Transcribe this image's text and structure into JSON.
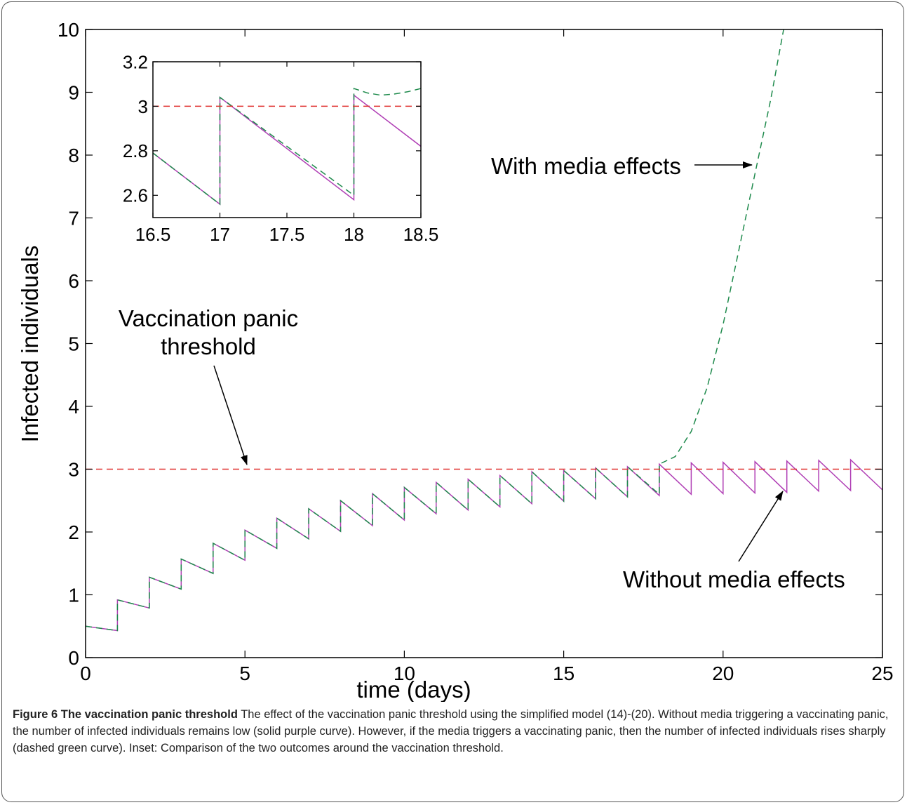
{
  "chart_data": [
    {
      "type": "line",
      "title": "",
      "xlabel": "time (days)",
      "ylabel": "Infected individuals",
      "xlim": [
        0,
        25
      ],
      "ylim": [
        0,
        10
      ],
      "xticks": [
        "0",
        "5",
        "10",
        "15",
        "20",
        "25"
      ],
      "yticks": [
        "0",
        "1",
        "2",
        "3",
        "4",
        "5",
        "6",
        "7",
        "8",
        "9",
        "10"
      ],
      "grid": false,
      "series": [
        {
          "name": "Without media effects",
          "style": "solid",
          "color": "#b03fb5",
          "x": [
            0,
            1,
            1,
            2,
            2,
            3,
            3,
            4,
            4,
            5,
            5,
            6,
            6,
            7,
            7,
            8,
            8,
            9,
            9,
            10,
            10,
            11,
            11,
            12,
            12,
            13,
            13,
            14,
            14,
            15,
            15,
            16,
            16,
            17,
            17,
            18,
            18,
            19,
            19,
            20,
            20,
            21,
            21,
            22,
            22,
            23,
            23,
            24,
            24,
            25
          ],
          "y": [
            0.5,
            0.43,
            0.92,
            0.79,
            1.28,
            1.09,
            1.57,
            1.34,
            1.82,
            1.55,
            2.03,
            1.74,
            2.22,
            1.89,
            2.37,
            2.01,
            2.5,
            2.1,
            2.61,
            2.19,
            2.71,
            2.29,
            2.79,
            2.35,
            2.84,
            2.4,
            2.9,
            2.45,
            2.96,
            2.49,
            2.98,
            2.53,
            3.02,
            2.56,
            3.04,
            2.58,
            3.08,
            2.6,
            3.1,
            2.61,
            3.11,
            2.62,
            3.12,
            2.63,
            3.13,
            2.65,
            3.14,
            2.66,
            3.15,
            2.67
          ]
        },
        {
          "name": "With media effects",
          "style": "dashed",
          "color": "#1e8a4c",
          "x": [
            0,
            1,
            1,
            2,
            2,
            3,
            3,
            4,
            4,
            5,
            5,
            6,
            6,
            7,
            7,
            8,
            8,
            9,
            9,
            10,
            10,
            11,
            11,
            12,
            12,
            13,
            13,
            14,
            14,
            15,
            15,
            16,
            16,
            17,
            17,
            18,
            18,
            18.5,
            19,
            19.5,
            20,
            20.5,
            21,
            21.5,
            21.9
          ],
          "y": [
            0.5,
            0.43,
            0.92,
            0.79,
            1.28,
            1.09,
            1.57,
            1.34,
            1.82,
            1.55,
            2.03,
            1.74,
            2.22,
            1.89,
            2.37,
            2.01,
            2.5,
            2.1,
            2.61,
            2.19,
            2.71,
            2.29,
            2.79,
            2.35,
            2.84,
            2.4,
            2.9,
            2.45,
            2.96,
            2.49,
            2.98,
            2.53,
            3.02,
            2.56,
            3.04,
            2.6,
            3.08,
            3.2,
            3.6,
            4.3,
            5.3,
            6.5,
            7.7,
            8.9,
            10
          ]
        },
        {
          "name": "Vaccination panic threshold",
          "style": "dashed",
          "color": "#e0302f",
          "x": [
            0,
            25
          ],
          "y": [
            3,
            3
          ]
        }
      ],
      "annotations": {
        "threshold_line1": "Vaccination panic",
        "threshold_line2": "threshold",
        "with_media": "With media effects",
        "without_media": "Without media effects"
      }
    },
    {
      "type": "line",
      "title": "",
      "xlabel": "",
      "ylabel": "",
      "xlim": [
        16.5,
        18.5
      ],
      "ylim": [
        2.5,
        3.2
      ],
      "xticks": [
        "16.5",
        "17",
        "17.5",
        "18",
        "18.5"
      ],
      "yticks": [
        "2.6",
        "2.8",
        "3",
        "3.2"
      ],
      "series": [
        {
          "style": "solid",
          "color": "#b03fb5",
          "x": [
            16.5,
            17,
            17,
            18,
            18,
            18.5
          ],
          "y": [
            2.79,
            2.56,
            3.04,
            2.58,
            3.05,
            2.82
          ]
        },
        {
          "style": "dashed",
          "color": "#1e8a4c",
          "x": [
            16.5,
            17,
            17,
            18,
            18,
            18.1,
            18.2,
            18.3,
            18.4,
            18.5
          ],
          "y": [
            2.79,
            2.56,
            3.04,
            2.6,
            3.08,
            3.06,
            3.05,
            3.055,
            3.065,
            3.08
          ]
        },
        {
          "style": "dashed",
          "color": "#e0302f",
          "x": [
            16.5,
            18.5
          ],
          "y": [
            3,
            3
          ]
        }
      ]
    }
  ],
  "caption": {
    "label": "Figure 6 The vaccination panic threshold",
    "text": " The effect of the vaccination panic threshold using the simplified model (14)-(20). Without media triggering a vaccinating panic, the number of infected individuals remains low (solid purple curve). However, if the media triggers a vaccinating panic, then the number of infected individuals rises sharply (dashed green curve). Inset: Comparison of the two outcomes around the vaccination threshold."
  }
}
